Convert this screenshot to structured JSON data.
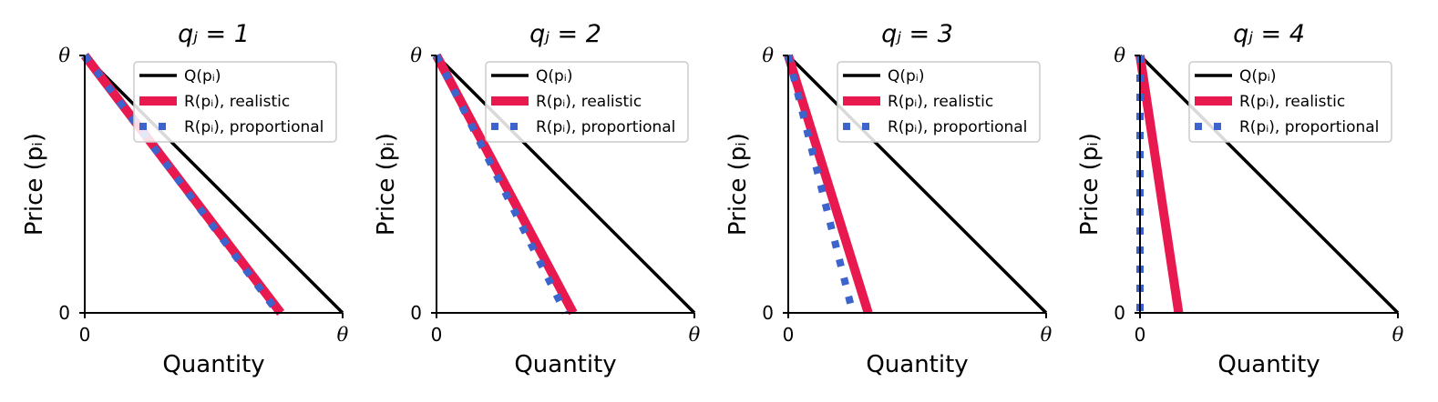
{
  "colors": {
    "Q": "#000000",
    "realistic": "#e8194e",
    "proportional": "#3d63cc",
    "legend_border": "#cccccc",
    "axis": "#000000"
  },
  "axis_labels": {
    "x": "Quantity",
    "y": "Price (pᵢ)"
  },
  "ticks": {
    "zero": "0",
    "theta": "θ"
  },
  "legend": {
    "Q": "Q(pᵢ)",
    "realistic": "R(pᵢ), realistic",
    "proportional": "R(pᵢ), proportional"
  },
  "chart_data": [
    {
      "type": "line",
      "title": "qⱼ = 1",
      "xlabel": "Quantity",
      "ylabel": "Price (pᵢ)",
      "xlim": [
        0,
        1
      ],
      "ylim": [
        0,
        1
      ],
      "x_ticks": [
        "0",
        "θ"
      ],
      "y_ticks": [
        "0",
        "θ"
      ],
      "legend_position": "top-right",
      "series": [
        {
          "name": "Q(pᵢ)",
          "style": "solid-thin",
          "points": [
            [
              0,
              1
            ],
            [
              1,
              0
            ]
          ]
        },
        {
          "name": "R(pᵢ), realistic",
          "style": "solid-thick",
          "points": [
            [
              0,
              1
            ],
            [
              0.76,
              0
            ]
          ]
        },
        {
          "name": "R(pᵢ), proportional",
          "style": "dotted",
          "points": [
            [
              0,
              1
            ],
            [
              0.75,
              0
            ]
          ]
        }
      ]
    },
    {
      "type": "line",
      "title": "qⱼ = 2",
      "xlabel": "Quantity",
      "ylabel": "Price (pᵢ)",
      "xlim": [
        0,
        1
      ],
      "ylim": [
        0,
        1
      ],
      "x_ticks": [
        "0",
        "θ"
      ],
      "y_ticks": [
        "0",
        "θ"
      ],
      "legend_position": "top-right",
      "series": [
        {
          "name": "Q(pᵢ)",
          "style": "solid-thin",
          "points": [
            [
              0,
              1
            ],
            [
              1,
              0
            ]
          ]
        },
        {
          "name": "R(pᵢ), realistic",
          "style": "solid-thick",
          "points": [
            [
              0,
              1
            ],
            [
              0.53,
              0
            ]
          ]
        },
        {
          "name": "R(pᵢ), proportional",
          "style": "dotted",
          "points": [
            [
              0,
              1
            ],
            [
              0.5,
              0
            ]
          ]
        }
      ]
    },
    {
      "type": "line",
      "title": "qⱼ = 3",
      "xlabel": "Quantity",
      "ylabel": "Price (pᵢ)",
      "xlim": [
        0,
        1
      ],
      "ylim": [
        0,
        1
      ],
      "x_ticks": [
        "0",
        "θ"
      ],
      "y_ticks": [
        "0",
        "θ"
      ],
      "legend_position": "top-right",
      "series": [
        {
          "name": "Q(pᵢ)",
          "style": "solid-thin",
          "points": [
            [
              0,
              1
            ],
            [
              1,
              0
            ]
          ]
        },
        {
          "name": "R(pᵢ), realistic",
          "style": "solid-thick",
          "points": [
            [
              0,
              1
            ],
            [
              0.31,
              0
            ]
          ]
        },
        {
          "name": "R(pᵢ), proportional",
          "style": "dotted",
          "points": [
            [
              0,
              1
            ],
            [
              0.25,
              0
            ]
          ]
        }
      ]
    },
    {
      "type": "line",
      "title": "qⱼ = 4",
      "xlabel": "Quantity",
      "ylabel": "Price (pᵢ)",
      "xlim": [
        0,
        1
      ],
      "ylim": [
        0,
        1
      ],
      "x_ticks": [
        "0",
        "θ"
      ],
      "y_ticks": [
        "0",
        "θ"
      ],
      "legend_position": "top-right",
      "series": [
        {
          "name": "Q(pᵢ)",
          "style": "solid-thin",
          "points": [
            [
              0,
              1
            ],
            [
              1,
              0
            ]
          ]
        },
        {
          "name": "R(pᵢ), realistic",
          "style": "solid-thick",
          "points": [
            [
              0,
              1
            ],
            [
              0.15,
              0
            ]
          ]
        },
        {
          "name": "R(pᵢ), proportional",
          "style": "dotted",
          "points": [
            [
              0,
              1
            ],
            [
              0,
              0
            ]
          ]
        }
      ]
    }
  ]
}
